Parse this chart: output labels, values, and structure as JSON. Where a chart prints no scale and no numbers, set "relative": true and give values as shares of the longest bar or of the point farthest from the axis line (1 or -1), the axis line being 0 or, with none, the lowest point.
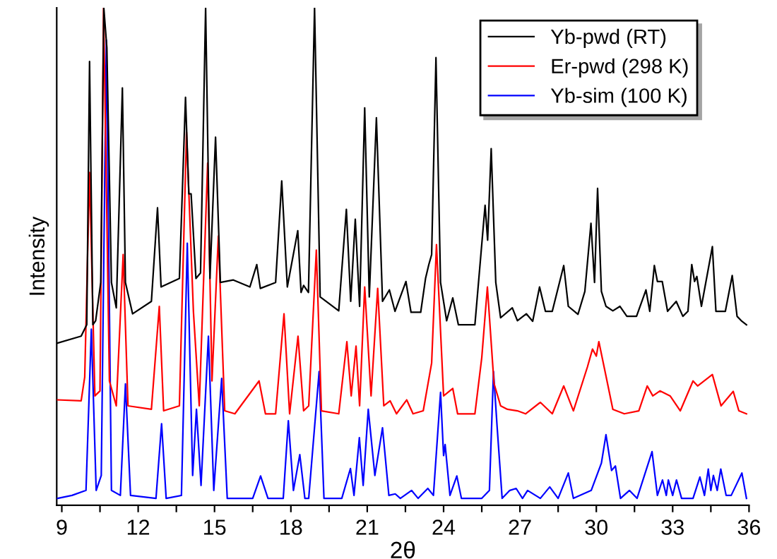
{
  "chart_data": {
    "type": "line",
    "relative": true,
    "xlabel": "2θ",
    "ylabel": "Intensity",
    "xlim": [
      8.8,
      36.0
    ],
    "xticks": [
      9,
      {
        "value": 10.5,
        "label": null
      },
      12,
      {
        "value": 13.5,
        "label": null
      },
      15,
      {
        "value": 16.5,
        "label": null
      },
      18,
      {
        "value": 19.5,
        "label": null
      },
      21,
      {
        "value": 22.5,
        "label": null
      },
      24,
      {
        "value": 25.5,
        "label": null
      },
      27,
      {
        "value": 28.5,
        "label": null
      },
      30,
      {
        "value": 31.5,
        "label": null
      },
      33,
      {
        "value": 34.5,
        "label": null
      },
      36
    ],
    "tick_labels": "x",
    "grid": false,
    "legend": "top right",
    "marker": "none",
    "line_style": "solid",
    "series": [
      {
        "name": "Yb-pwd (RT)",
        "color": "#000000",
        "x": [
          8.83,
          9.76,
          9.98,
          10.09,
          10.22,
          10.33,
          10.53,
          10.65,
          10.77,
          10.95,
          11.14,
          11.38,
          11.5,
          11.78,
          12.52,
          12.76,
          12.9,
          13.62,
          13.86,
          13.99,
          14.08,
          14.27,
          14.45,
          14.65,
          14.82,
          15.04,
          15.23,
          15.74,
          16.39,
          16.66,
          16.8,
          17.4,
          17.64,
          17.86,
          18.27,
          18.4,
          18.5,
          18.69,
          18.93,
          19.15,
          19.88,
          20.18,
          20.35,
          20.53,
          20.7,
          20.9,
          21.08,
          21.36,
          21.6,
          21.87,
          22.09,
          22.52,
          22.72,
          23.1,
          23.29,
          23.42,
          23.53,
          23.7,
          23.88,
          24.12,
          24.36,
          24.58,
          25.23,
          25.63,
          25.73,
          25.87,
          26.05,
          26.24,
          26.7,
          26.9,
          27.25,
          27.5,
          27.77,
          28.0,
          28.27,
          28.72,
          28.9,
          29.28,
          29.55,
          29.79,
          29.93,
          30.05,
          30.2,
          30.38,
          30.65,
          30.93,
          31.2,
          31.58,
          31.95,
          32.1,
          32.28,
          32.4,
          32.59,
          32.8,
          33.14,
          33.4,
          33.6,
          33.75,
          33.86,
          33.95,
          34.13,
          34.56,
          34.7,
          35.07,
          35.34,
          35.53,
          35.72,
          35.9
        ],
        "values": [
          0.326,
          0.34,
          0.363,
          0.892,
          0.363,
          0.371,
          0.448,
          1.0,
          0.92,
          0.448,
          0.397,
          0.839,
          0.448,
          0.385,
          0.41,
          0.598,
          0.439,
          0.456,
          0.82,
          0.626,
          0.626,
          0.456,
          0.467,
          1.0,
          0.456,
          0.74,
          0.448,
          0.453,
          0.439,
          0.484,
          0.436,
          0.448,
          0.652,
          0.439,
          0.552,
          0.428,
          0.442,
          0.428,
          1.0,
          0.419,
          0.391,
          0.595,
          0.41,
          0.575,
          0.4,
          0.799,
          0.419,
          0.779,
          0.41,
          0.433,
          0.39,
          0.45,
          0.388,
          0.388,
          0.456,
          0.484,
          0.504,
          0.9,
          0.448,
          0.371,
          0.417,
          0.363,
          0.363,
          0.603,
          0.533,
          0.717,
          0.448,
          0.377,
          0.397,
          0.371,
          0.385,
          0.37,
          0.439,
          0.39,
          0.39,
          0.482,
          0.4,
          0.384,
          0.43,
          0.567,
          0.448,
          0.637,
          0.43,
          0.4,
          0.391,
          0.4,
          0.38,
          0.38,
          0.433,
          0.39,
          0.482,
          0.45,
          0.45,
          0.39,
          0.41,
          0.38,
          0.39,
          0.484,
          0.45,
          0.46,
          0.4,
          0.52,
          0.39,
          0.39,
          0.462,
          0.38,
          0.37,
          0.363
        ]
      },
      {
        "name": "Er-pwd (298 K)",
        "color": "#ff0000",
        "x": [
          8.83,
          9.76,
          9.9,
          10.09,
          10.3,
          10.5,
          10.64,
          10.87,
          11.14,
          11.41,
          11.6,
          12.52,
          12.83,
          13.0,
          13.62,
          13.9,
          14.17,
          14.4,
          14.73,
          14.9,
          15.15,
          15.4,
          15.8,
          16.75,
          17.0,
          17.4,
          17.73,
          17.95,
          18.28,
          18.5,
          18.7,
          19.0,
          19.2,
          19.88,
          20.2,
          20.37,
          20.56,
          20.7,
          20.9,
          21.15,
          21.41,
          21.65,
          21.9,
          22.15,
          22.55,
          22.8,
          23.2,
          23.53,
          23.72,
          24.0,
          24.36,
          24.55,
          25.23,
          25.5,
          25.72,
          25.98,
          26.24,
          26.51,
          26.9,
          27.22,
          27.8,
          28.27,
          28.72,
          29.1,
          29.65,
          29.85,
          30.0,
          30.1,
          30.38,
          30.65,
          31.1,
          31.67,
          32.0,
          32.22,
          32.5,
          32.9,
          33.3,
          33.8,
          33.98,
          34.56,
          34.9,
          35.38,
          35.6,
          35.9
        ],
        "values": [
          0.212,
          0.21,
          0.258,
          0.669,
          0.22,
          0.23,
          1.0,
          0.25,
          0.2,
          0.504,
          0.2,
          0.193,
          0.4,
          0.19,
          0.2,
          0.75,
          0.39,
          0.2,
          0.688,
          0.25,
          0.541,
          0.19,
          0.184,
          0.25,
          0.184,
          0.184,
          0.385,
          0.184,
          0.34,
          0.19,
          0.2,
          0.513,
          0.19,
          0.184,
          0.329,
          0.22,
          0.32,
          0.2,
          0.439,
          0.22,
          0.436,
          0.2,
          0.21,
          0.184,
          0.212,
          0.184,
          0.19,
          0.286,
          0.524,
          0.22,
          0.235,
          0.184,
          0.184,
          0.297,
          0.439,
          0.245,
          0.2,
          0.193,
          0.19,
          0.184,
          0.207,
          0.184,
          0.24,
          0.19,
          0.278,
          0.314,
          0.3,
          0.329,
          0.26,
          0.193,
          0.184,
          0.19,
          0.24,
          0.22,
          0.23,
          0.22,
          0.19,
          0.25,
          0.24,
          0.263,
          0.2,
          0.229,
          0.19,
          0.184
        ]
      },
      {
        "name": "Yb-sim (100 K)",
        "color": "#0000ff",
        "x": [
          8.83,
          9.4,
          9.95,
          10.16,
          10.35,
          10.55,
          10.75,
          10.95,
          11.3,
          11.5,
          11.7,
          12.7,
          12.92,
          13.1,
          13.7,
          13.93,
          14.14,
          14.29,
          14.47,
          14.76,
          14.97,
          15.28,
          15.5,
          16.5,
          16.81,
          17.1,
          17.7,
          17.9,
          18.1,
          18.35,
          18.55,
          18.7,
          19.11,
          19.3,
          20.0,
          20.34,
          20.48,
          20.69,
          20.84,
          21.04,
          21.3,
          21.6,
          21.85,
          22.1,
          22.3,
          22.74,
          23.0,
          23.38,
          23.6,
          23.88,
          24.0,
          24.06,
          24.25,
          24.52,
          24.7,
          25.5,
          25.8,
          25.96,
          26.1,
          26.3,
          26.6,
          26.85,
          27.1,
          27.3,
          27.8,
          28.17,
          28.5,
          28.9,
          29.1,
          29.8,
          30.2,
          30.38,
          30.6,
          30.75,
          30.95,
          31.3,
          31.6,
          32.19,
          32.4,
          32.6,
          32.75,
          32.83,
          33.0,
          33.15,
          33.35,
          33.8,
          34.07,
          34.25,
          34.4,
          34.5,
          34.6,
          34.75,
          34.89,
          35.1,
          35.3,
          35.72,
          35.9
        ],
        "values": [
          0.014,
          0.02,
          0.03,
          0.354,
          0.03,
          0.06,
          0.935,
          0.03,
          0.02,
          0.244,
          0.02,
          0.014,
          0.164,
          0.014,
          0.02,
          0.527,
          0.06,
          0.193,
          0.04,
          0.34,
          0.03,
          0.255,
          0.014,
          0.014,
          0.059,
          0.014,
          0.014,
          0.17,
          0.03,
          0.102,
          0.014,
          0.014,
          0.269,
          0.014,
          0.014,
          0.074,
          0.02,
          0.136,
          0.04,
          0.193,
          0.06,
          0.156,
          0.02,
          0.023,
          0.014,
          0.03,
          0.014,
          0.034,
          0.02,
          0.227,
          0.1,
          0.122,
          0.02,
          0.059,
          0.014,
          0.014,
          0.03,
          0.269,
          0.16,
          0.014,
          0.03,
          0.034,
          0.014,
          0.03,
          0.014,
          0.037,
          0.014,
          0.065,
          0.014,
          0.03,
          0.085,
          0.142,
          0.07,
          0.079,
          0.014,
          0.03,
          0.014,
          0.108,
          0.02,
          0.051,
          0.02,
          0.051,
          0.02,
          0.051,
          0.014,
          0.014,
          0.057,
          0.02,
          0.073,
          0.03,
          0.06,
          0.03,
          0.073,
          0.02,
          0.02,
          0.065,
          0.014
        ]
      }
    ]
  }
}
